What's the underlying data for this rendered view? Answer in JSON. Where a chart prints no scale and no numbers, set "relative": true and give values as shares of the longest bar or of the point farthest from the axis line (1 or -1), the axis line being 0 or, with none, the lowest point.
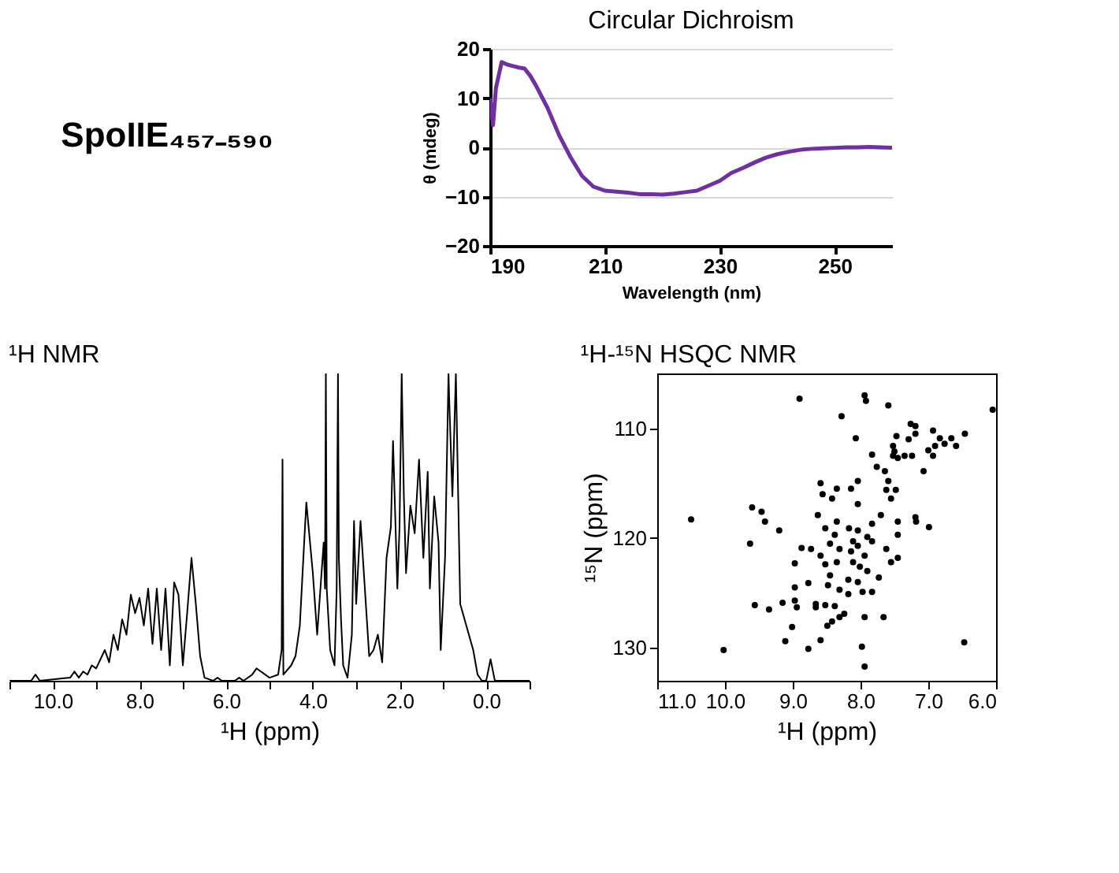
{
  "chart_data": [
    {
      "type": "other",
      "title": "SpoIIE₄₅₇₋₅₉₀"
    },
    {
      "type": "line",
      "title": "Circular Dichroism",
      "xlabel": "Wavelength (nm)",
      "ylabel": "θ (mdeg)",
      "color": "#7030a0",
      "x": [
        190,
        190.5,
        191,
        192,
        193,
        194,
        195,
        196,
        197,
        198,
        200,
        202,
        204,
        206,
        208,
        210,
        212,
        214,
        216,
        218,
        220,
        222,
        224,
        226,
        228,
        230,
        232,
        234,
        236,
        238,
        240,
        242,
        244,
        246,
        248,
        250,
        252,
        254,
        256,
        258,
        260
      ],
      "values": [
        10,
        4.5,
        12,
        17.3,
        16.8,
        16.5,
        16.2,
        16,
        14.5,
        12.5,
        8,
        2.5,
        -2,
        -5.8,
        -8,
        -8.8,
        -9,
        -9.2,
        -9.5,
        -9.5,
        -9.6,
        -9.4,
        -9.1,
        -8.8,
        -7.8,
        -6.8,
        -5.2,
        -4.2,
        -3.1,
        -2.1,
        -1.4,
        -0.9,
        -0.5,
        -0.3,
        -0.2,
        -0.1,
        0,
        0,
        0.1,
        0,
        -0.1
      ],
      "xlim": [
        190,
        260
      ],
      "xticks": [
        190,
        210,
        230,
        250
      ],
      "ylim": [
        -20,
        20
      ],
      "yticks": [
        -20,
        -10,
        0,
        10,
        20
      ],
      "grid": "y"
    },
    {
      "type": "line",
      "title": "¹H NMR",
      "xlabel": "¹H (ppm)",
      "relative": true,
      "color": "#000000",
      "x": [
        11,
        10.5,
        10.4,
        10.3,
        9.6,
        9.5,
        9.4,
        9.3,
        9.2,
        9.1,
        9.0,
        8.9,
        8.8,
        8.7,
        8.6,
        8.5,
        8.4,
        8.3,
        8.2,
        8.1,
        8.0,
        7.9,
        7.8,
        7.7,
        7.6,
        7.5,
        7.4,
        7.3,
        7.2,
        7.1,
        7.0,
        6.9,
        6.8,
        6.7,
        6.6,
        6.5,
        6.3,
        6.2,
        6.1,
        5.8,
        5.7,
        5.6,
        5.4,
        5.3,
        5.2,
        5.0,
        4.8,
        4.72,
        4.7,
        4.68,
        4.5,
        4.4,
        4.3,
        4.2,
        4.15,
        4.0,
        3.9,
        3.8,
        3.75,
        3.72,
        3.7,
        3.68,
        3.6,
        3.5,
        3.45,
        3.42,
        3.4,
        3.35,
        3.3,
        3.2,
        3.1,
        3.05,
        3.0,
        2.9,
        2.8,
        2.7,
        2.6,
        2.5,
        2.4,
        2.3,
        2.2,
        2.15,
        2.05,
        2.0,
        1.95,
        1.9,
        1.85,
        1.75,
        1.65,
        1.55,
        1.45,
        1.35,
        1.3,
        1.2,
        1.1,
        1.05,
        0.95,
        0.87,
        0.85,
        0.78,
        0.72,
        0.7,
        0.6,
        0.5,
        0.4,
        0.3,
        0.2,
        0.1,
        0.0,
        -0.1,
        -0.2,
        -0.5,
        -1
      ],
      "values": [
        0,
        0,
        0.02,
        0,
        0.01,
        0.03,
        0.01,
        0.03,
        0.02,
        0.05,
        0.04,
        0.07,
        0.1,
        0.06,
        0.15,
        0.1,
        0.2,
        0.15,
        0.28,
        0.22,
        0.27,
        0.18,
        0.3,
        0.12,
        0.3,
        0.1,
        0.3,
        0.05,
        0.32,
        0.28,
        0.05,
        0.22,
        0.4,
        0.25,
        0.08,
        0.01,
        0,
        0.01,
        0,
        0,
        0.01,
        0,
        0.02,
        0.04,
        0.03,
        0.01,
        0.02,
        0.1,
        0.72,
        0.02,
        0.05,
        0.08,
        0.18,
        0.45,
        0.58,
        0.35,
        0.15,
        0.35,
        0.45,
        0.3,
        1,
        0.3,
        0.1,
        0.05,
        0.3,
        1,
        0.4,
        0.2,
        0.05,
        0.01,
        0.15,
        0.52,
        0.25,
        0.52,
        0.3,
        0.08,
        0.1,
        0.15,
        0.06,
        0.4,
        0.5,
        0.78,
        0.3,
        0.5,
        1,
        0.6,
        0.35,
        0.57,
        0.48,
        0.72,
        0.4,
        0.68,
        0.3,
        0.6,
        0.45,
        0.1,
        0.4,
        1,
        0.9,
        0.6,
        0.9,
        1,
        0.25,
        0.2,
        0.15,
        0.1,
        0.02,
        0,
        0,
        0.07,
        0,
        0,
        0
      ],
      "xlim": [
        11,
        -1
      ],
      "xticks": [
        {
          "value": 11,
          "label": null
        },
        {
          "value": 10,
          "label": "10.0"
        },
        {
          "value": 9,
          "label": null
        },
        {
          "value": 8,
          "label": "8.0"
        },
        {
          "value": 7,
          "label": null
        },
        {
          "value": 6,
          "label": "6.0"
        },
        {
          "value": 5,
          "label": null
        },
        {
          "value": 4,
          "label": "4.0"
        },
        {
          "value": 3,
          "label": null
        },
        {
          "value": 2,
          "label": "2.0"
        },
        {
          "value": 1,
          "label": null
        },
        {
          "value": 0,
          "label": "0.0"
        },
        {
          "value": -1,
          "label": null
        }
      ]
    },
    {
      "type": "scatter",
      "title": "¹H-¹⁵N HSQC NMR",
      "xlabel": "¹H (ppm)",
      "ylabel": "¹⁵N (ppm)",
      "color": "#000000",
      "marker": "circle",
      "x": [
        8.9,
        7.94,
        7.92,
        7.59,
        8.28,
        6.05,
        7.26,
        7.19,
        7.19,
        8.07,
        7.47,
        7.52,
        7.5,
        7.52,
        7.45,
        7.29,
        6.93,
        6.83,
        6.9,
        7.0,
        6.93,
        6.76,
        6.66,
        6.59,
        6.46,
        7.07,
        7.83,
        7.76,
        7.64,
        7.35,
        7.24,
        7.59,
        7.62,
        7.48,
        7.55,
        8.04,
        8.59,
        8.56,
        8.35,
        8.14,
        8.42,
        8.04,
        9.6,
        9.46,
        9.41,
        10.5,
        9.2,
        9.63,
        8.63,
        8.35,
        8.52,
        8.38,
        8.17,
        8.04,
        7.83,
        7.7,
        7.9,
        8.11,
        8.04,
        8.14,
        8.31,
        8.45,
        8.73,
        8.87,
        8.59,
        8.35,
        8.11,
        7.94,
        8.01,
        7.9,
        7.83,
        7.45,
        7.45,
        7.62,
        7.55,
        7.45,
        7.19,
        7.18,
        6.99,
        8.97,
        8.52,
        8.45,
        8.18,
        8.04,
        7.73,
        8.77,
        8.97,
        8.48,
        8.31,
        8.18,
        7.83,
        7.97,
        9.56,
        9.35,
        9.15,
        8.97,
        8.94,
        8.66,
        8.52,
        8.38,
        8.66,
        8.24,
        8.31,
        7.94,
        7.66,
        9.01,
        8.49,
        8.42,
        9.11,
        8.59,
        8.77,
        7.98,
        10.02,
        6.47,
        7.94
      ],
      "values": [
        107.3,
        107.0,
        107.5,
        107.9,
        108.9,
        108.3,
        109.6,
        109.8,
        110.5,
        110.9,
        110.7,
        111.6,
        112.1,
        112.5,
        112.7,
        111.0,
        110.2,
        110.9,
        111.6,
        112.0,
        112.5,
        111.4,
        110.9,
        111.6,
        110.5,
        113.9,
        112.4,
        113.5,
        113.9,
        112.5,
        112.5,
        114.8,
        115.6,
        115.6,
        116.4,
        114.8,
        115.0,
        116.0,
        115.5,
        115.5,
        116.4,
        116.9,
        117.2,
        117.6,
        118.5,
        118.3,
        119.3,
        120.5,
        117.9,
        118.5,
        119.1,
        119.7,
        119.1,
        119.3,
        118.7,
        117.9,
        119.9,
        120.3,
        120.7,
        121.2,
        121.0,
        120.5,
        121.0,
        120.9,
        121.6,
        122.2,
        122.2,
        121.6,
        122.6,
        123.0,
        120.3,
        118.5,
        119.7,
        121.0,
        122.2,
        121.8,
        118.1,
        118.5,
        119.0,
        122.3,
        122.4,
        123.4,
        123.8,
        124.0,
        123.6,
        124.1,
        124.5,
        124.3,
        124.7,
        125.1,
        124.9,
        124.9,
        126.1,
        126.5,
        125.9,
        125.7,
        126.3,
        126.0,
        126.1,
        126.2,
        126.3,
        126.9,
        127.2,
        127.2,
        127.2,
        128.1,
        128.0,
        127.6,
        129.4,
        129.3,
        130.1,
        129.9,
        130.2,
        129.5,
        131.7
      ],
      "xlim": [
        11,
        6
      ],
      "xticks": [
        {
          "value": 11,
          "label": "11.0"
        },
        {
          "value": 10,
          "label": "10.0"
        },
        {
          "value": 9,
          "label": "9.0"
        },
        {
          "value": 8,
          "label": "8.0"
        },
        {
          "value": 7,
          "label": "7.0"
        },
        {
          "value": 6,
          "label": "6.0"
        }
      ],
      "ylim": [
        133,
        105
      ],
      "yticks": [
        110,
        120,
        130
      ]
    }
  ]
}
